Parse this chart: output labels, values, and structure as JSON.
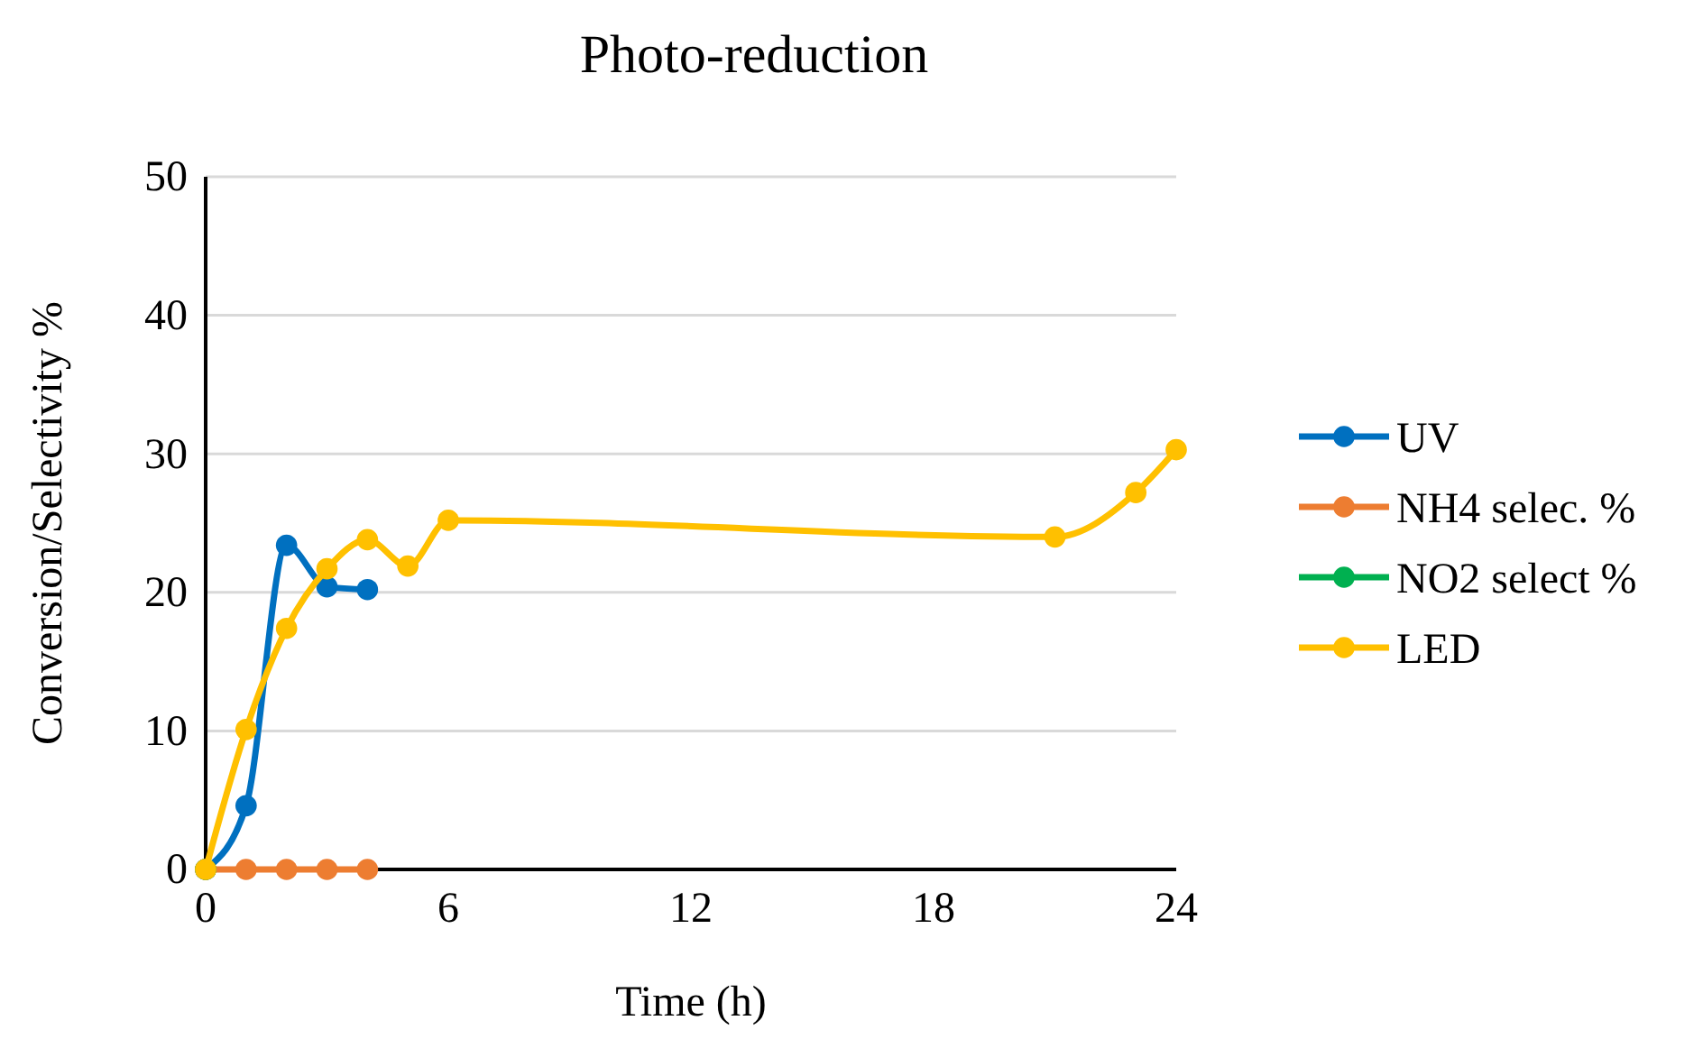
{
  "chart_data": {
    "type": "line",
    "title": "Photo-reduction",
    "xlabel": "Time (h)",
    "ylabel": "Conversion/Selectivity %",
    "xlim": [
      0,
      24
    ],
    "xticks": [
      0,
      6,
      12,
      18,
      24
    ],
    "ylim": [
      0,
      50
    ],
    "yticks": [
      0,
      10,
      20,
      30,
      40,
      50
    ],
    "grid": "y",
    "legend": "right",
    "marker": "circle",
    "line_style": "solid",
    "series": [
      {
        "name": "UV",
        "color": "#0070c0",
        "x": [
          0,
          1,
          2,
          3,
          4
        ],
        "values": [
          0,
          4.6,
          23.4,
          20.4,
          20.2
        ]
      },
      {
        "name": "NH4 selec. %",
        "color": "#ed7d31",
        "x": [
          0,
          1,
          2,
          3,
          4
        ],
        "values": [
          0,
          0,
          0,
          0,
          0
        ]
      },
      {
        "name": "NO2 select %",
        "color": "#00b050",
        "x": [
          0
        ],
        "values": [
          0
        ]
      },
      {
        "name": "LED",
        "color": "#ffc000",
        "x": [
          0,
          1,
          2,
          3,
          4,
          5,
          6,
          21,
          23,
          24
        ],
        "values": [
          0,
          10.1,
          17.4,
          21.7,
          23.8,
          21.9,
          25.2,
          24.0,
          27.2,
          30.3
        ]
      }
    ]
  }
}
